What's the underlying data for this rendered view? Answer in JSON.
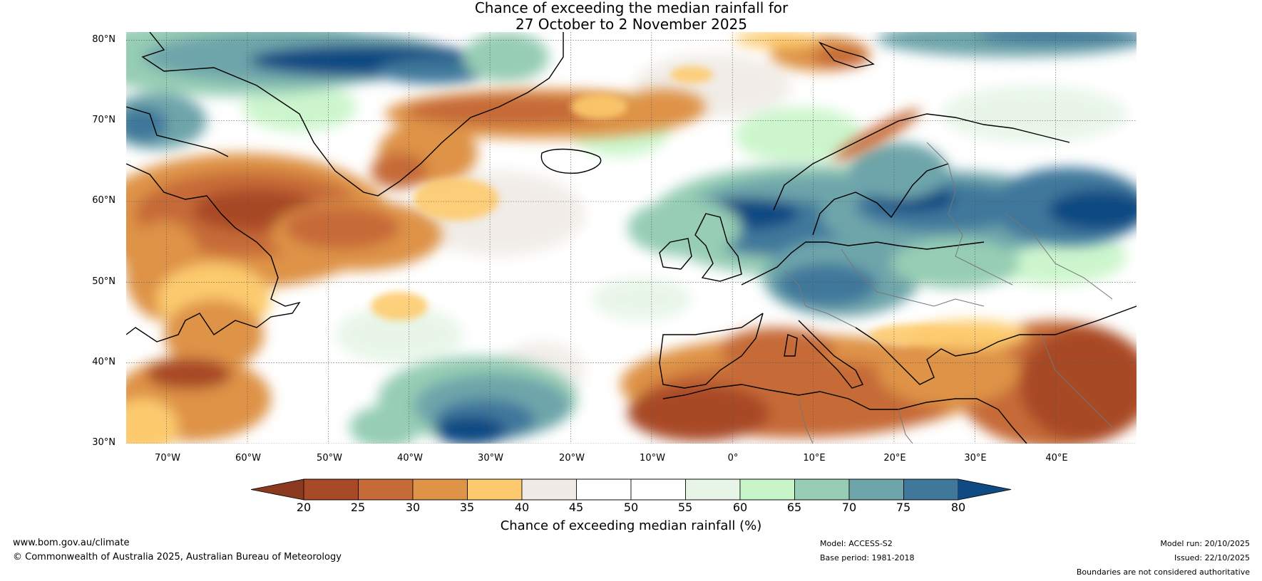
{
  "title": {
    "line1": "Chance of exceeding the median rainfall for",
    "line2": "27 October to 2 November 2025"
  },
  "map": {
    "lat_ticks": [
      "80°N",
      "70°N",
      "60°N",
      "50°N",
      "40°N",
      "30°N"
    ],
    "lon_ticks": [
      "70°W",
      "60°W",
      "50°W",
      "40°W",
      "30°W",
      "20°W",
      "10°W",
      "0°",
      "10°E",
      "20°E",
      "30°E",
      "40°E"
    ],
    "lat_values": [
      80,
      70,
      60,
      50,
      40,
      30
    ],
    "lon_values": [
      -70,
      -60,
      -50,
      -40,
      -30,
      -20,
      -10,
      0,
      10,
      20,
      30,
      40
    ],
    "extent": {
      "lon_min": -75,
      "lon_max": 50,
      "lat_min": 30,
      "lat_max": 81
    }
  },
  "legend": {
    "label": "Chance of exceeding median rainfall (%)",
    "ticks": [
      "20",
      "25",
      "30",
      "35",
      "40",
      "45",
      "50",
      "55",
      "60",
      "65",
      "70",
      "75",
      "80"
    ],
    "under_color": "#8c3a1f",
    "colors": [
      "#a84a27",
      "#c66a37",
      "#de9346",
      "#fdcb6e",
      "#f0ebe6",
      "#ffffff",
      "#ffffff",
      "#e6f5e6",
      "#c8f5c8",
      "#96cdb4",
      "#6ea5aa",
      "#40789b"
    ],
    "over_color": "#104a82"
  },
  "footer": {
    "website": "www.bom.gov.au/climate",
    "copyright": "© Commonwealth of Australia 2025, Australian Bureau of Meteorology",
    "model": "Model: ACCESS-S2",
    "base_period": "Base period: 1981-2018",
    "model_run": "Model run: 20/10/2025",
    "issued": "Issued: 22/10/2025",
    "disclaimer": "Boundaries are not considered authoritative"
  }
}
